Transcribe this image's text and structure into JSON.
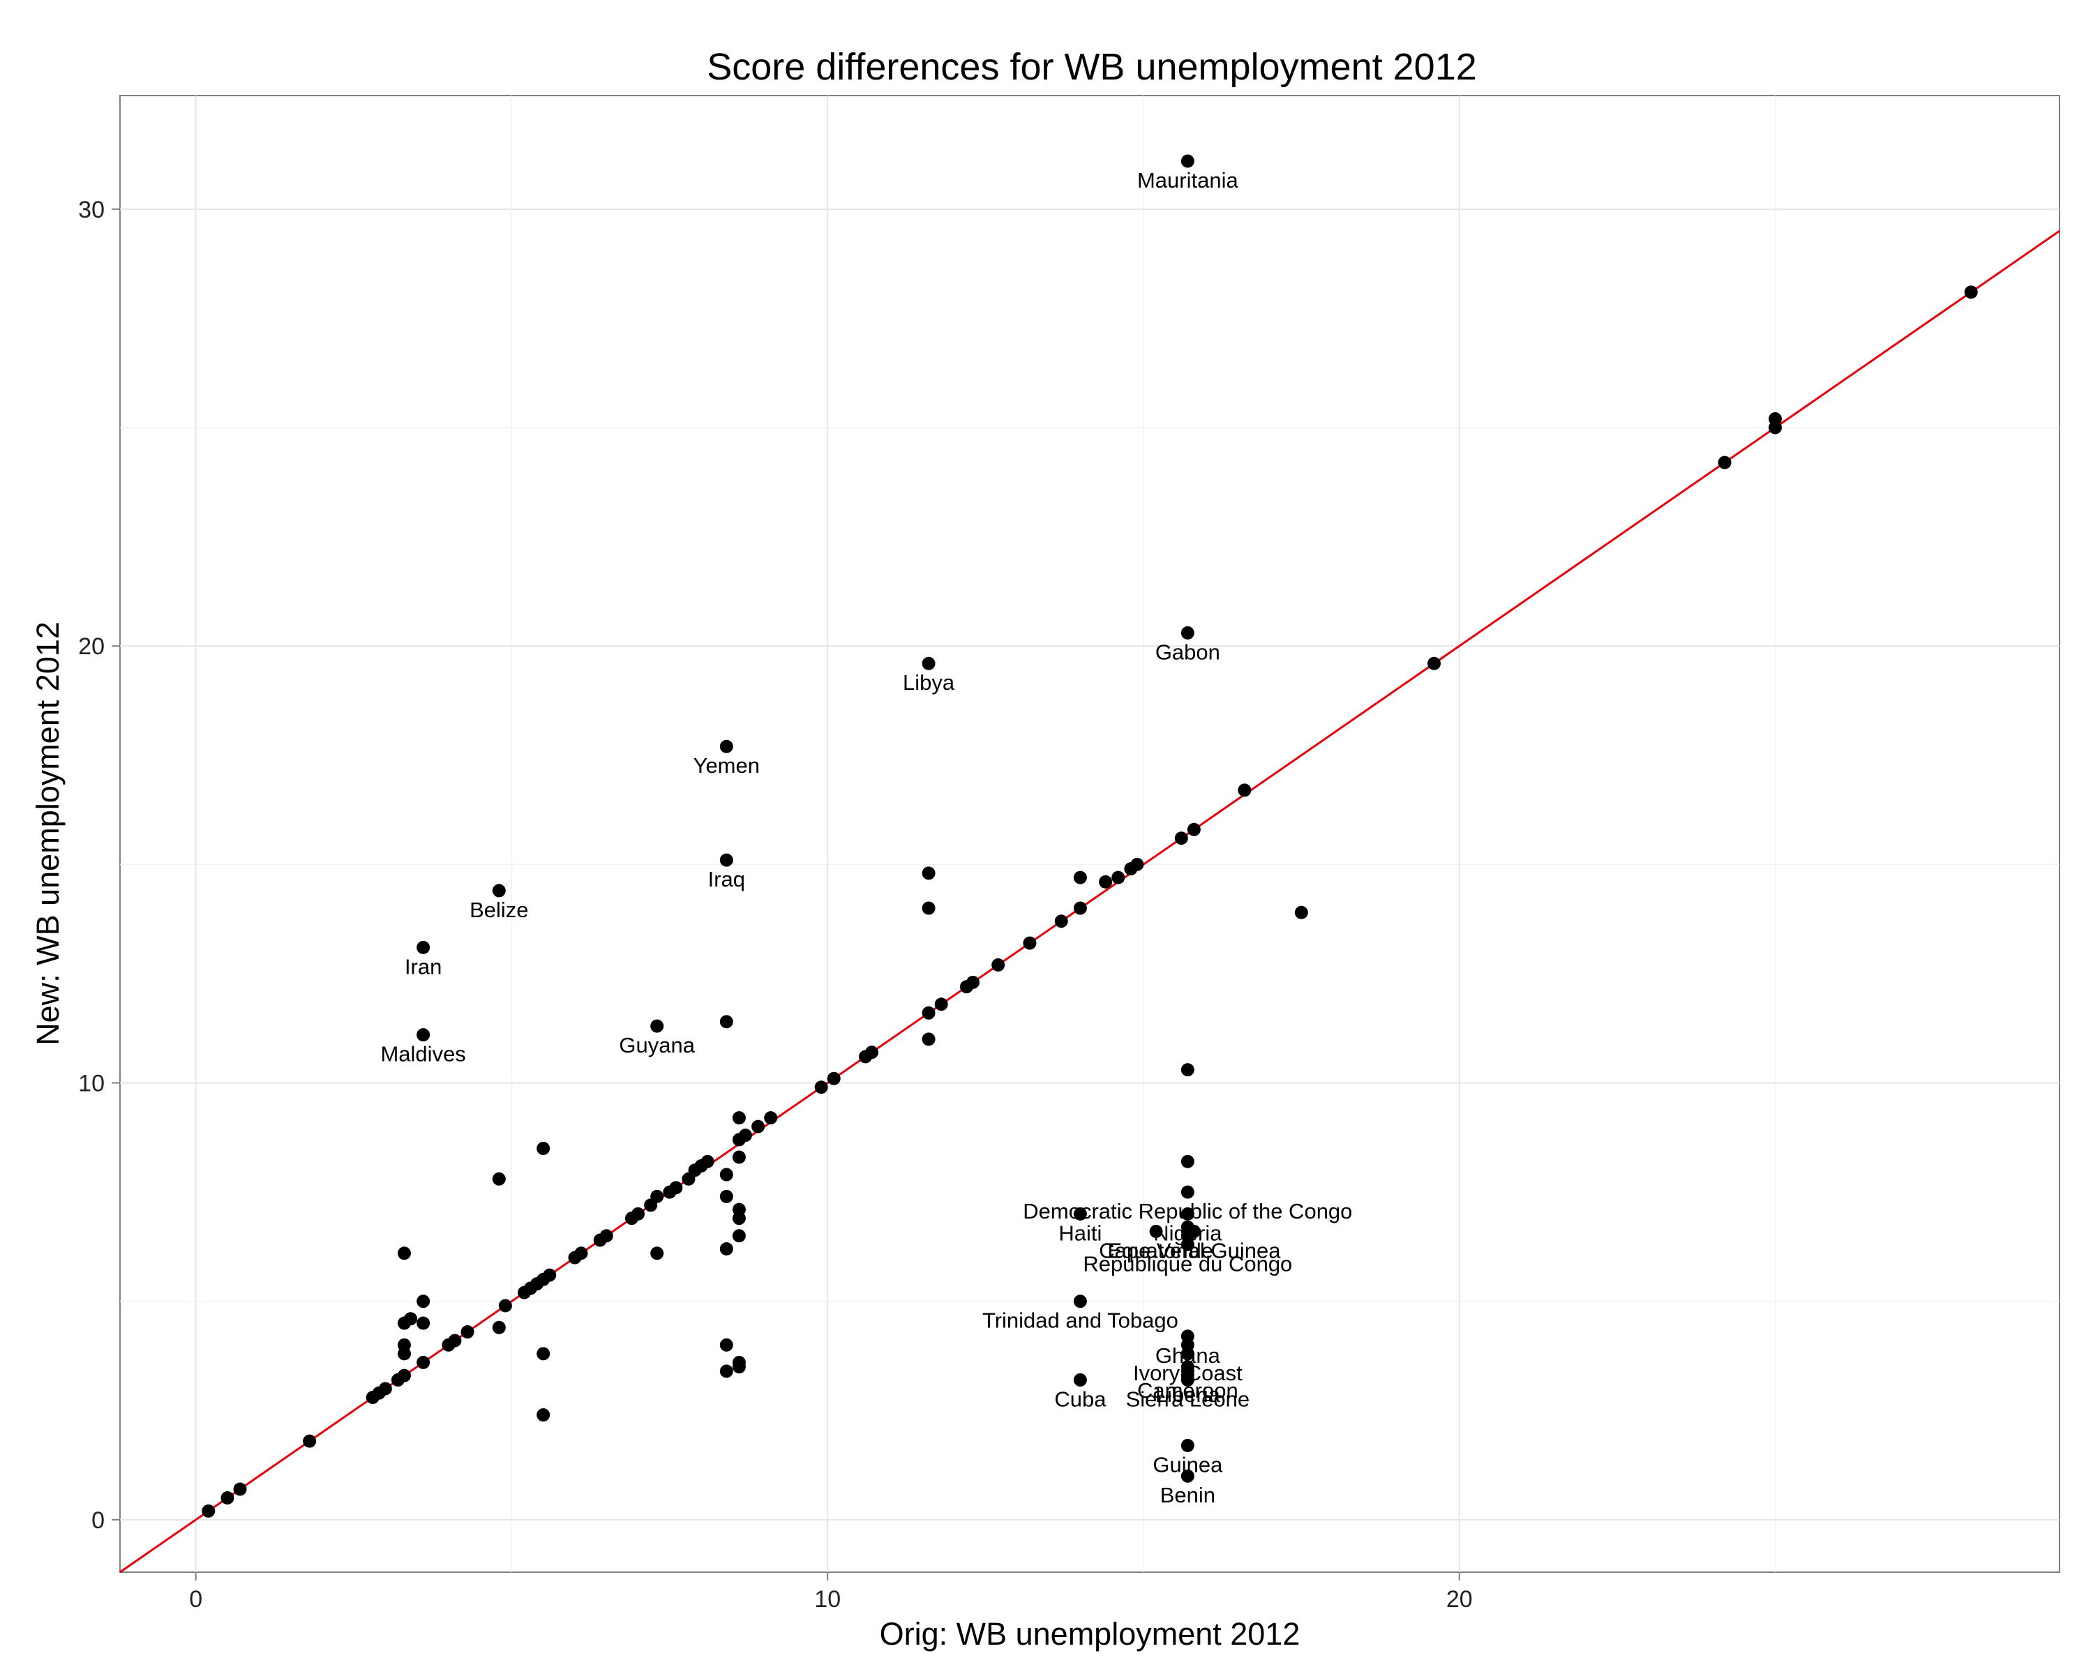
{
  "chart_data": {
    "type": "scatter",
    "title": "Score differences for WB unemployment 2012",
    "xlabel": "Orig: WB unemployment 2012",
    "ylabel": "New: WB unemployment 2012",
    "xlim": [
      -1.2,
      29.5
    ],
    "ylim": [
      -1.2,
      32.6
    ],
    "x_ticks": [
      0,
      10,
      20
    ],
    "y_ticks": [
      0,
      10,
      20,
      30
    ],
    "grid": true,
    "legend": "none",
    "reference_line": {
      "type": "y = x",
      "color": "#e8000b"
    },
    "point_color": "#000000",
    "points": [
      {
        "x": 0.2,
        "y": 0.2
      },
      {
        "x": 0.5,
        "y": 0.5
      },
      {
        "x": 0.7,
        "y": 0.7
      },
      {
        "x": 1.8,
        "y": 1.8
      },
      {
        "x": 2.8,
        "y": 2.8
      },
      {
        "x": 2.9,
        "y": 2.9
      },
      {
        "x": 3.0,
        "y": 3.0
      },
      {
        "x": 3.2,
        "y": 3.2
      },
      {
        "x": 3.3,
        "y": 3.3
      },
      {
        "x": 3.3,
        "y": 3.8
      },
      {
        "x": 3.3,
        "y": 4.0
      },
      {
        "x": 3.3,
        "y": 4.5
      },
      {
        "x": 3.4,
        "y": 4.6
      },
      {
        "x": 3.6,
        "y": 4.5
      },
      {
        "x": 3.6,
        "y": 5.0
      },
      {
        "x": 3.3,
        "y": 6.1
      },
      {
        "x": 3.6,
        "y": 3.6
      },
      {
        "x": 4.0,
        "y": 4.0
      },
      {
        "x": 4.1,
        "y": 4.1
      },
      {
        "x": 4.3,
        "y": 4.3
      },
      {
        "x": 4.8,
        "y": 4.4
      },
      {
        "x": 4.8,
        "y": 7.8
      },
      {
        "x": 4.9,
        "y": 4.9
      },
      {
        "x": 5.2,
        "y": 5.2
      },
      {
        "x": 5.3,
        "y": 5.3
      },
      {
        "x": 5.4,
        "y": 5.4
      },
      {
        "x": 5.5,
        "y": 5.5
      },
      {
        "x": 5.6,
        "y": 5.6
      },
      {
        "x": 5.5,
        "y": 8.5
      },
      {
        "x": 5.5,
        "y": 3.8
      },
      {
        "x": 5.5,
        "y": 2.4
      },
      {
        "x": 6.0,
        "y": 6.0
      },
      {
        "x": 6.1,
        "y": 6.1
      },
      {
        "x": 6.4,
        "y": 6.4
      },
      {
        "x": 6.5,
        "y": 6.5
      },
      {
        "x": 6.9,
        "y": 6.9
      },
      {
        "x": 7.0,
        "y": 7.0
      },
      {
        "x": 7.2,
        "y": 7.2
      },
      {
        "x": 7.3,
        "y": 7.4
      },
      {
        "x": 7.3,
        "y": 6.1
      },
      {
        "x": 7.5,
        "y": 7.5
      },
      {
        "x": 7.6,
        "y": 7.6
      },
      {
        "x": 7.8,
        "y": 7.8
      },
      {
        "x": 7.9,
        "y": 8.0
      },
      {
        "x": 8.0,
        "y": 8.1
      },
      {
        "x": 8.1,
        "y": 8.2
      },
      {
        "x": 8.4,
        "y": 7.9
      },
      {
        "x": 8.4,
        "y": 7.4
      },
      {
        "x": 8.4,
        "y": 6.2
      },
      {
        "x": 8.4,
        "y": 4.0
      },
      {
        "x": 8.4,
        "y": 3.4
      },
      {
        "x": 8.4,
        "y": 11.4
      },
      {
        "x": 8.6,
        "y": 8.7
      },
      {
        "x": 8.7,
        "y": 8.8
      },
      {
        "x": 8.6,
        "y": 9.2
      },
      {
        "x": 8.6,
        "y": 8.3
      },
      {
        "x": 8.6,
        "y": 7.1
      },
      {
        "x": 8.6,
        "y": 6.9
      },
      {
        "x": 8.6,
        "y": 6.5
      },
      {
        "x": 8.6,
        "y": 3.6
      },
      {
        "x": 8.6,
        "y": 3.5
      },
      {
        "x": 8.9,
        "y": 9.0
      },
      {
        "x": 9.1,
        "y": 9.2
      },
      {
        "x": 9.9,
        "y": 9.9
      },
      {
        "x": 10.1,
        "y": 10.1
      },
      {
        "x": 10.6,
        "y": 10.6
      },
      {
        "x": 10.7,
        "y": 10.7
      },
      {
        "x": 11.6,
        "y": 11.6
      },
      {
        "x": 11.6,
        "y": 11.0
      },
      {
        "x": 11.6,
        "y": 14.0
      },
      {
        "x": 11.6,
        "y": 14.8
      },
      {
        "x": 11.8,
        "y": 11.8
      },
      {
        "x": 12.2,
        "y": 12.2
      },
      {
        "x": 12.3,
        "y": 12.3
      },
      {
        "x": 12.7,
        "y": 12.7
      },
      {
        "x": 13.2,
        "y": 13.2
      },
      {
        "x": 13.7,
        "y": 13.7
      },
      {
        "x": 14.0,
        "y": 14.0
      },
      {
        "x": 14.0,
        "y": 14.7
      },
      {
        "x": 14.4,
        "y": 14.6
      },
      {
        "x": 14.6,
        "y": 14.7
      },
      {
        "x": 14.8,
        "y": 14.9
      },
      {
        "x": 14.9,
        "y": 15.0
      },
      {
        "x": 15.6,
        "y": 15.6
      },
      {
        "x": 15.8,
        "y": 15.8
      },
      {
        "x": 15.7,
        "y": 10.3
      },
      {
        "x": 15.7,
        "y": 8.2
      },
      {
        "x": 15.7,
        "y": 6.7
      },
      {
        "x": 15.7,
        "y": 6.6
      },
      {
        "x": 15.7,
        "y": 6.5
      },
      {
        "x": 15.7,
        "y": 4.0
      },
      {
        "x": 15.7,
        "y": 3.8
      },
      {
        "x": 15.7,
        "y": 3.5
      },
      {
        "x": 16.6,
        "y": 16.7
      },
      {
        "x": 17.5,
        "y": 13.9
      },
      {
        "x": 19.6,
        "y": 19.6
      },
      {
        "x": 24.2,
        "y": 24.2
      },
      {
        "x": 25.0,
        "y": 25.0
      },
      {
        "x": 25.0,
        "y": 25.2
      },
      {
        "x": 28.1,
        "y": 28.1
      }
    ],
    "labeled_points": [
      {
        "label": "Mauritania",
        "x": 15.7,
        "y": 31.1
      },
      {
        "label": "Gabon",
        "x": 15.7,
        "y": 20.3
      },
      {
        "label": "Libya",
        "x": 11.6,
        "y": 19.6
      },
      {
        "label": "Yemen",
        "x": 8.4,
        "y": 17.7
      },
      {
        "label": "Iraq",
        "x": 8.4,
        "y": 15.1
      },
      {
        "label": "Belize",
        "x": 4.8,
        "y": 14.4
      },
      {
        "label": "Iran",
        "x": 3.6,
        "y": 13.1
      },
      {
        "label": "Maldives",
        "x": 3.6,
        "y": 11.1
      },
      {
        "label": "Guyana",
        "x": 7.3,
        "y": 11.3
      },
      {
        "label": "Democratic Republic of the Congo",
        "x": 15.7,
        "y": 7.5
      },
      {
        "label": "Nigeria",
        "x": 15.7,
        "y": 7.0
      },
      {
        "label": "Haiti",
        "x": 14.0,
        "y": 7.0
      },
      {
        "label": "Cape Verde",
        "x": 15.2,
        "y": 6.6
      },
      {
        "label": "Equatorial Guinea",
        "x": 15.8,
        "y": 6.6
      },
      {
        "label": "Republique du Congo",
        "x": 15.7,
        "y": 6.3
      },
      {
        "label": "Trinidad and Tobago",
        "x": 14.0,
        "y": 5.0
      },
      {
        "label": "Ghana",
        "x": 15.7,
        "y": 4.2
      },
      {
        "label": "Ivory Coast",
        "x": 15.7,
        "y": 3.8
      },
      {
        "label": "Cameroon",
        "x": 15.7,
        "y": 3.4
      },
      {
        "label": "Liberia",
        "x": 15.7,
        "y": 3.3
      },
      {
        "label": "Sierra Leone",
        "x": 15.7,
        "y": 3.2
      },
      {
        "label": "Cuba",
        "x": 14.0,
        "y": 3.2
      },
      {
        "label": "Guinea",
        "x": 15.7,
        "y": 1.7
      },
      {
        "label": "Benin",
        "x": 15.7,
        "y": 1.0
      }
    ]
  }
}
